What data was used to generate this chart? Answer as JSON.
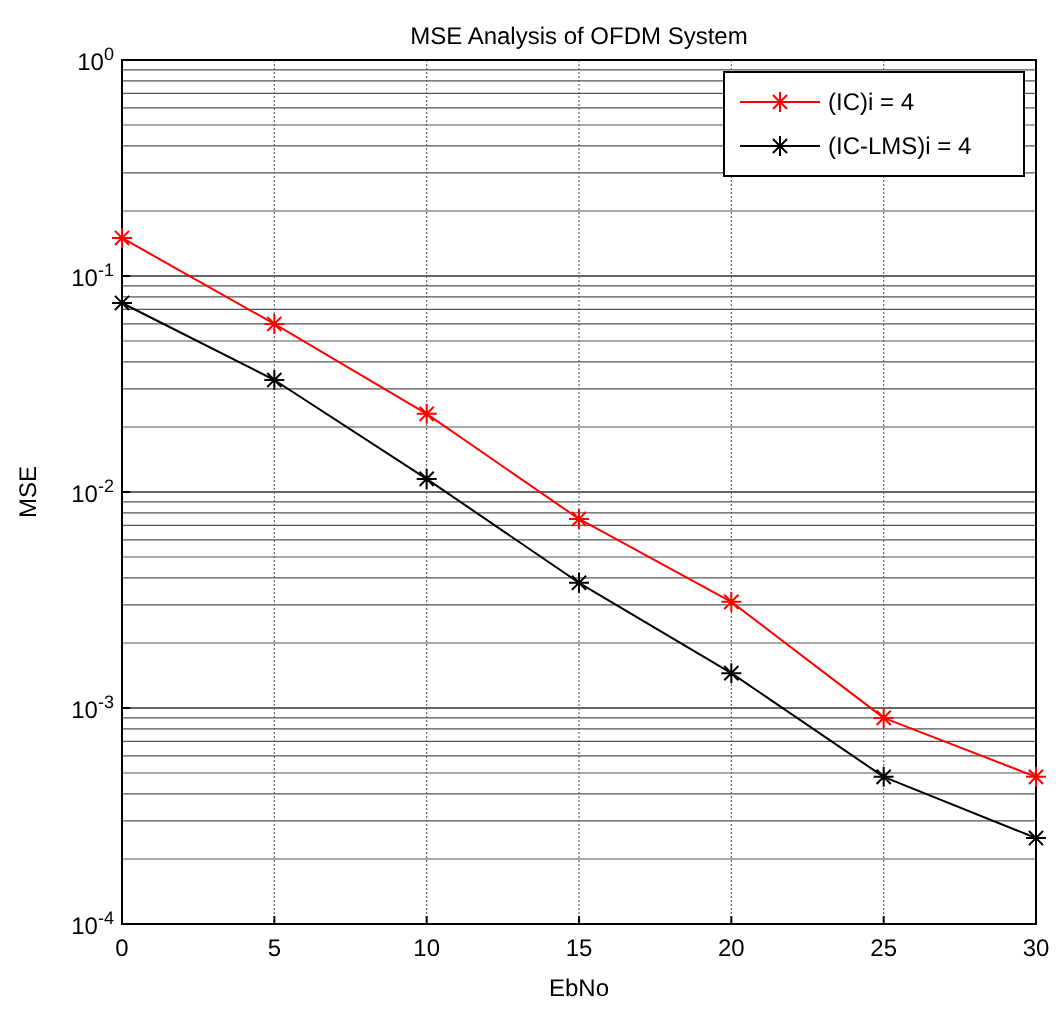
{
  "chart_data": {
    "type": "line",
    "title": "MSE Analysis of OFDM System",
    "xlabel": "EbNo",
    "ylabel": "MSE",
    "x": [
      0,
      5,
      10,
      15,
      20,
      25,
      30
    ],
    "series": [
      {
        "name": "(IC)i = 4",
        "color": "#ff0000",
        "values": [
          0.15,
          0.06,
          0.023,
          0.0075,
          0.0031,
          0.0009,
          0.00048
        ]
      },
      {
        "name": "(IC-LMS)i = 4",
        "color": "#000000",
        "values": [
          0.075,
          0.033,
          0.0115,
          0.0038,
          0.00145,
          0.00048,
          0.00025
        ]
      }
    ],
    "xlim": [
      0,
      30
    ],
    "xticks": [
      0,
      5,
      10,
      15,
      20,
      25,
      30
    ],
    "ylim": [
      0.0001,
      1
    ],
    "yticks": [
      {
        "value": 0.0001,
        "label": "10$^{-4}$"
      },
      {
        "value": 0.001,
        "label": "10$^{-3}$"
      },
      {
        "value": 0.01,
        "label": "10$^{-2}$"
      },
      {
        "value": 0.1,
        "label": "10$^{-1}$"
      },
      {
        "value": 1,
        "label": "10$^{0}$"
      }
    ],
    "log": "y",
    "grid": true,
    "legend": "top right",
    "marker": "cross",
    "line_style": "solid"
  }
}
